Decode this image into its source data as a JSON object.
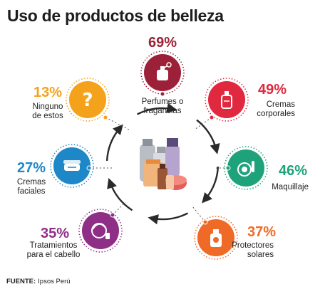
{
  "title": "Uso de productos de belleza",
  "source": {
    "prefix": "FUENTE:",
    "text": "Ipsos Perú"
  },
  "chart_data": {
    "type": "infographic-percentages",
    "title": "Uso de productos de belleza",
    "unit": "%",
    "items": [
      {
        "key": "perfumes",
        "label_lines": [
          "Perfumes o",
          "fragancias"
        ],
        "value": 69,
        "value_label": "69%",
        "color": "#9c2138",
        "icon": "perfume-bottle-icon"
      },
      {
        "key": "cremas_corp",
        "label_lines": [
          "Cremas",
          "corporales"
        ],
        "value": 49,
        "value_label": "49%",
        "color": "#e0283f",
        "icon": "lotion-bottle-icon"
      },
      {
        "key": "maquillaje",
        "label_lines": [
          "Maquillaje"
        ],
        "value": 46,
        "value_label": "46%",
        "color": "#1ea27a",
        "icon": "makeup-compact-icon"
      },
      {
        "key": "protectores",
        "label_lines": [
          "Protectores",
          "solares"
        ],
        "value": 37,
        "value_label": "37%",
        "color": "#ef6a26",
        "icon": "sunscreen-bottle-icon"
      },
      {
        "key": "cabello",
        "label_lines": [
          "Tratamientos",
          "para el cabello"
        ],
        "value": 35,
        "value_label": "35%",
        "color": "#8e2e86",
        "icon": "hair-treatment-icon"
      },
      {
        "key": "cremas_fac",
        "label_lines": [
          "Cremas",
          "faciales"
        ],
        "value": 27,
        "value_label": "27%",
        "color": "#1e87c8",
        "icon": "face-cream-jar-icon"
      },
      {
        "key": "ninguno",
        "label_lines": [
          "Ninguno",
          "de estos"
        ],
        "value": 13,
        "value_label": "13%",
        "color": "#f4a21c",
        "icon": "question-mark-icon"
      }
    ]
  }
}
